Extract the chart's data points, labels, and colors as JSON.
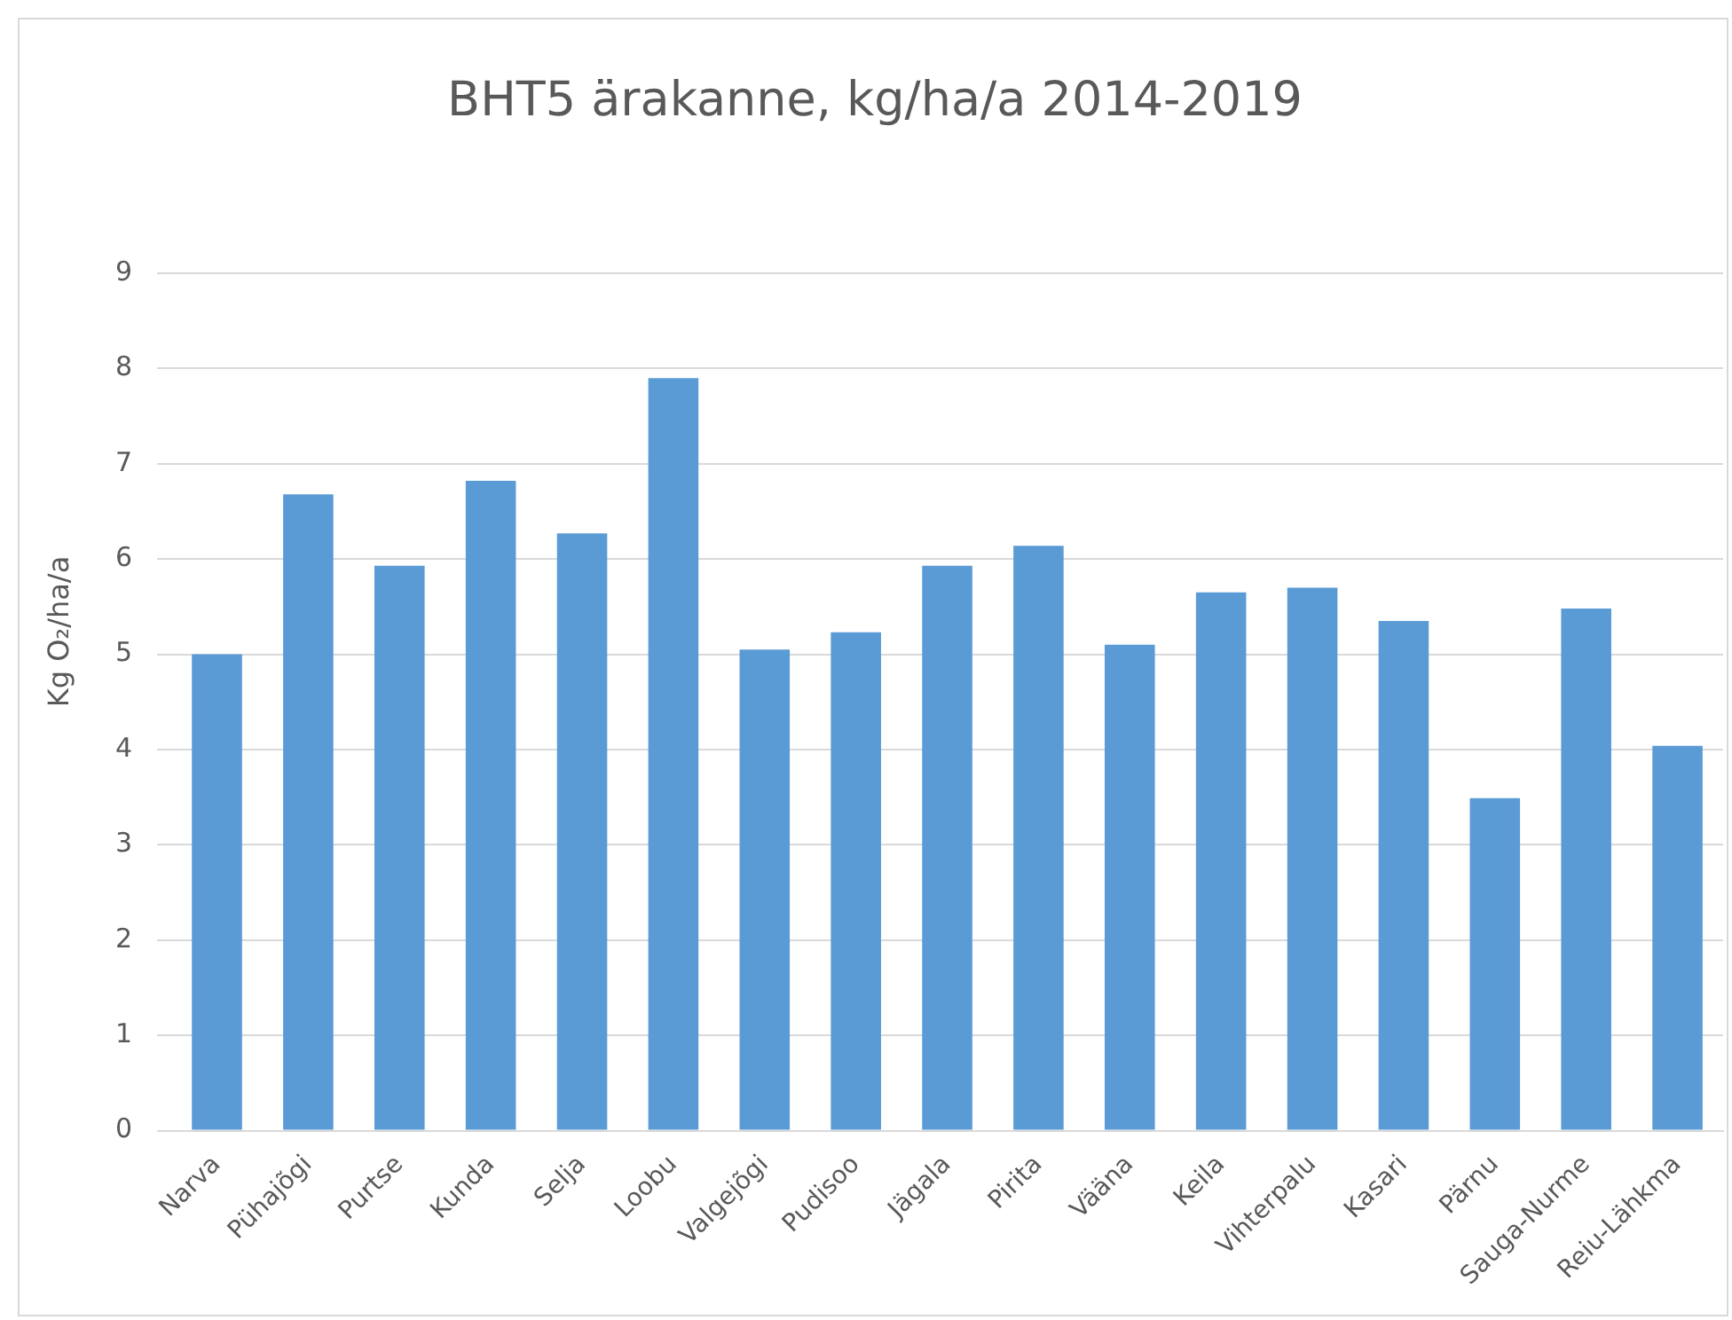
{
  "chart_data": {
    "type": "bar",
    "title": "BHT5 ärakanne, kg/ha/a 2014-2019",
    "ylabel": "Kg O₂/ha/a",
    "categories": [
      "Narva",
      "Pühajõgi",
      "Purtse",
      "Kunda",
      "Selja",
      "Loobu",
      "Valgejõgi",
      "Pudisoo",
      "Jägala",
      "Pirita",
      "Vääna",
      "Keila",
      "Vihterpalu",
      "Kasari",
      "Pärnu",
      "Sauga-Nurme",
      "Reiu-Lähkma"
    ],
    "values": [
      5.0,
      6.68,
      5.93,
      6.82,
      6.27,
      7.9,
      5.05,
      5.23,
      5.93,
      6.14,
      5.1,
      5.65,
      5.7,
      5.35,
      3.49,
      5.48,
      4.04
    ],
    "color": "#5b9bd5",
    "ylim": [
      0,
      9
    ],
    "yticks": [
      0,
      1,
      2,
      3,
      4,
      5,
      6,
      7,
      8,
      9
    ],
    "grid": "y",
    "legend": false
  }
}
